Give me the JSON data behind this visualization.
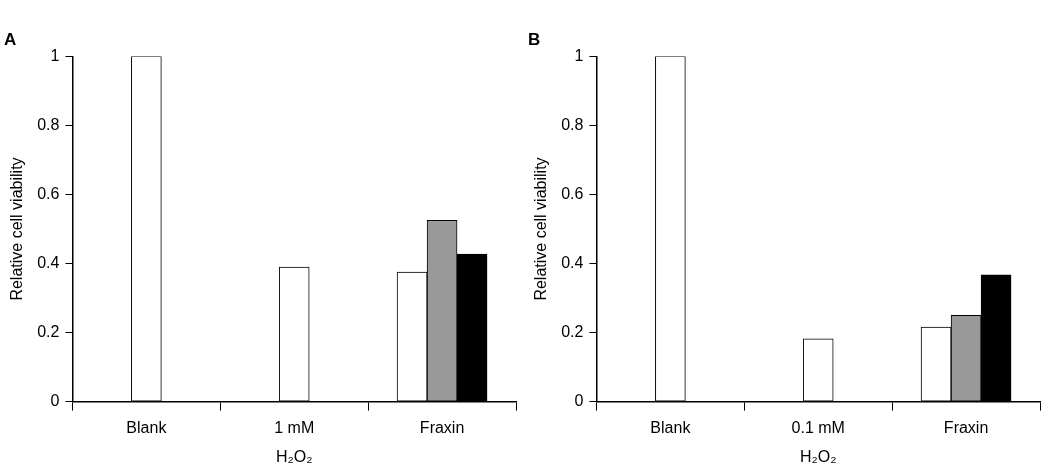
{
  "chart_data": [
    {
      "type": "bar",
      "title": "A",
      "ylabel": "Relative cell viability",
      "xlabel": "H₂O₂",
      "categories": [
        "Blank",
        "1 mM",
        "Fraxin"
      ],
      "series": [
        {
          "color": "#ffffff",
          "values": [
            1,
            0.39,
            0.375
          ]
        },
        {
          "color": "#999999",
          "values": [
            null,
            null,
            0.525
          ]
        },
        {
          "color": "#000000",
          "values": [
            null,
            null,
            0.427
          ]
        }
      ],
      "ylim": [
        0,
        1
      ],
      "yticks": [
        0,
        0.2,
        0.4,
        0.6,
        0.8,
        1
      ],
      "grid": false,
      "legend": false
    },
    {
      "type": "bar",
      "title": "B",
      "ylabel": "Relative cell viability",
      "xlabel": "H₂O₂",
      "categories": [
        "Blank",
        "0.1 mM",
        "Fraxin"
      ],
      "series": [
        {
          "color": "#ffffff",
          "values": [
            1,
            0.182,
            0.216
          ]
        },
        {
          "color": "#999999",
          "values": [
            null,
            null,
            0.25
          ]
        },
        {
          "color": "#000000",
          "values": [
            null,
            null,
            0.367
          ]
        }
      ],
      "ylim": [
        0,
        1
      ],
      "yticks": [
        0,
        0.2,
        0.4,
        0.6,
        0.8,
        1
      ],
      "grid": false,
      "legend": false
    }
  ]
}
